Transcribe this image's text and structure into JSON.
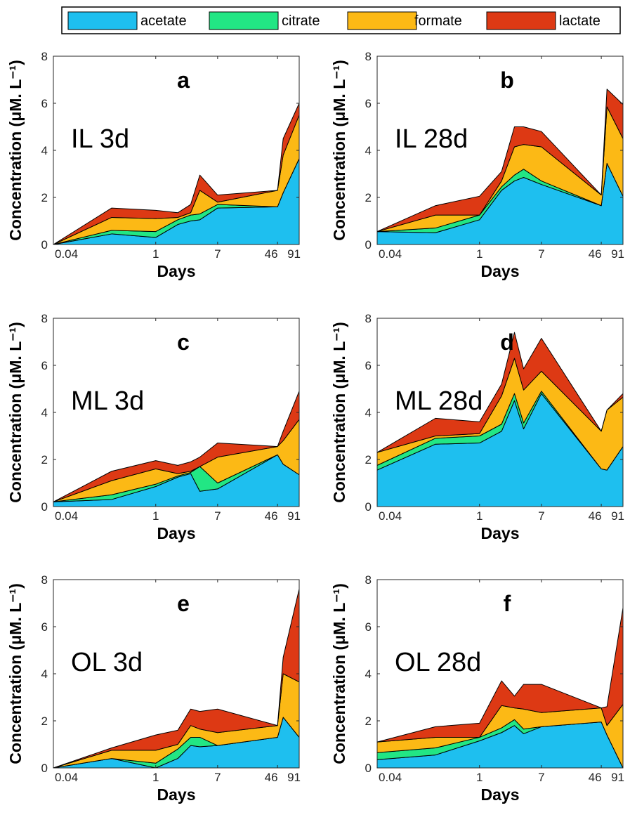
{
  "chart_data": {
    "type": "area",
    "stacked": true,
    "legend": {
      "placement": "top",
      "entries": [
        "acetate",
        "citrate",
        "formate",
        "lactate"
      ]
    },
    "colors": {
      "acetate": "#1ebfef",
      "citrate": "#22e684",
      "formate": "#fcb915",
      "lactate": "#dd3914"
    },
    "x_scale": "log",
    "x_ticks": [
      0.04,
      1,
      7,
      46,
      91
    ],
    "x_tick_labels": [
      "0.04",
      "1",
      "7",
      "46",
      "91"
    ],
    "xlim": [
      0.04,
      91
    ],
    "xlabel": "Days",
    "ylabel": "Concentration (μM. L⁻¹)",
    "ylim": [
      0,
      8
    ],
    "y_ticks": [
      0,
      2,
      4,
      6,
      8
    ],
    "panels": [
      {
        "letter": "a",
        "label": "IL 3d",
        "x": [
          0.04,
          0.25,
          1,
          2,
          3,
          4,
          7,
          46,
          55,
          91
        ],
        "series": [
          {
            "name": "acetate",
            "values": [
              0.0,
              0.45,
              0.3,
              0.85,
              1.0,
              1.05,
              1.55,
              1.6,
              2.2,
              3.65
            ]
          },
          {
            "name": "citrate",
            "values": [
              0.0,
              0.15,
              0.25,
              0.2,
              0.25,
              0.25,
              0.15,
              0.0,
              0.0,
              0.0
            ]
          },
          {
            "name": "formate",
            "values": [
              0.0,
              0.55,
              0.55,
              0.1,
              0.1,
              1.0,
              0.1,
              0.7,
              1.6,
              1.85
            ]
          },
          {
            "name": "lactate",
            "values": [
              0.0,
              0.4,
              0.35,
              0.2,
              0.35,
              0.65,
              0.3,
              0.0,
              0.7,
              0.5
            ]
          }
        ]
      },
      {
        "letter": "b",
        "label": "IL 28d",
        "x": [
          0.04,
          0.25,
          1,
          2,
          3,
          4,
          7,
          46,
          55,
          91
        ],
        "series": [
          {
            "name": "acetate",
            "values": [
              0.55,
              0.5,
              1.05,
              2.3,
              2.7,
              2.85,
              2.55,
              1.65,
              3.45,
              2.05
            ]
          },
          {
            "name": "citrate",
            "values": [
              0.0,
              0.2,
              0.2,
              0.15,
              0.25,
              0.35,
              0.15,
              0.0,
              0.0,
              0.0
            ]
          },
          {
            "name": "formate",
            "values": [
              0.0,
              0.55,
              0.0,
              0.25,
              1.2,
              1.05,
              1.45,
              0.45,
              2.4,
              2.45
            ]
          },
          {
            "name": "lactate",
            "values": [
              0.0,
              0.4,
              0.8,
              0.4,
              0.85,
              0.75,
              0.65,
              0.0,
              0.75,
              1.45
            ]
          }
        ]
      },
      {
        "letter": "c",
        "label": "ML 3d",
        "x": [
          0.04,
          0.25,
          1,
          2,
          3,
          4,
          7,
          46,
          55,
          91
        ],
        "series": [
          {
            "name": "acetate",
            "values": [
              0.2,
              0.3,
              0.85,
              1.25,
              1.4,
              0.65,
              0.75,
              2.2,
              1.8,
              1.35
            ]
          },
          {
            "name": "citrate",
            "values": [
              0.0,
              0.2,
              0.1,
              0.05,
              0.05,
              1.05,
              0.25,
              0.0,
              0.0,
              0.0
            ]
          },
          {
            "name": "formate",
            "values": [
              0.0,
              0.6,
              0.65,
              0.1,
              0.05,
              0.0,
              1.1,
              0.35,
              1.0,
              2.35
            ]
          },
          {
            "name": "lactate",
            "values": [
              0.0,
              0.4,
              0.35,
              0.35,
              0.4,
              0.4,
              0.6,
              0.0,
              0.4,
              1.2
            ]
          }
        ]
      },
      {
        "letter": "d",
        "label": "ML 28d",
        "x": [
          0.04,
          0.25,
          1,
          2,
          3,
          4,
          7,
          46,
          55,
          91
        ],
        "series": [
          {
            "name": "acetate",
            "values": [
              1.55,
              2.65,
              2.7,
              3.2,
              4.5,
              3.3,
              4.8,
              1.6,
              1.55,
              2.55
            ]
          },
          {
            "name": "citrate",
            "values": [
              0.2,
              0.25,
              0.3,
              0.3,
              0.3,
              0.25,
              0.1,
              0.0,
              0.0,
              0.0
            ]
          },
          {
            "name": "formate",
            "values": [
              0.55,
              0.1,
              0.1,
              1.2,
              1.5,
              1.4,
              0.85,
              1.6,
              2.55,
              2.1
            ]
          },
          {
            "name": "lactate",
            "values": [
              0.0,
              0.75,
              0.5,
              0.5,
              1.1,
              0.9,
              1.4,
              0.0,
              0.0,
              0.15
            ]
          }
        ]
      },
      {
        "letter": "e",
        "label": "OL 3d",
        "x": [
          0.04,
          0.25,
          1,
          2,
          3,
          4,
          7,
          46,
          55,
          91
        ],
        "series": [
          {
            "name": "acetate",
            "values": [
              0.0,
              0.4,
              0.0,
              0.4,
              0.95,
              0.9,
              0.95,
              1.3,
              2.15,
              1.3
            ]
          },
          {
            "name": "citrate",
            "values": [
              0.0,
              0.0,
              0.2,
              0.4,
              0.35,
              0.4,
              0.0,
              0.0,
              0.0,
              0.0
            ]
          },
          {
            "name": "formate",
            "values": [
              0.0,
              0.35,
              0.55,
              0.2,
              0.5,
              0.35,
              0.55,
              0.5,
              1.85,
              2.35
            ]
          },
          {
            "name": "lactate",
            "values": [
              0.0,
              0.1,
              0.65,
              0.6,
              0.7,
              0.75,
              1.0,
              0.0,
              0.7,
              3.95
            ]
          }
        ]
      },
      {
        "letter": "f",
        "label": "OL 28d",
        "x": [
          0.04,
          0.25,
          1,
          2,
          3,
          4,
          7,
          46,
          55,
          91
        ],
        "series": [
          {
            "name": "acetate",
            "values": [
              0.35,
              0.55,
              1.15,
              1.5,
              1.8,
              1.45,
              1.75,
              1.95,
              1.4,
              0.0
            ]
          },
          {
            "name": "citrate",
            "values": [
              0.3,
              0.3,
              0.15,
              0.2,
              0.25,
              0.2,
              0.0,
              0.0,
              0.0,
              0.0
            ]
          },
          {
            "name": "formate",
            "values": [
              0.45,
              0.45,
              0.0,
              0.95,
              0.5,
              0.85,
              0.6,
              0.6,
              0.4,
              2.7
            ]
          },
          {
            "name": "lactate",
            "values": [
              0.0,
              0.45,
              0.6,
              1.05,
              0.5,
              1.05,
              1.2,
              0.0,
              0.8,
              4.1
            ]
          }
        ]
      }
    ]
  }
}
